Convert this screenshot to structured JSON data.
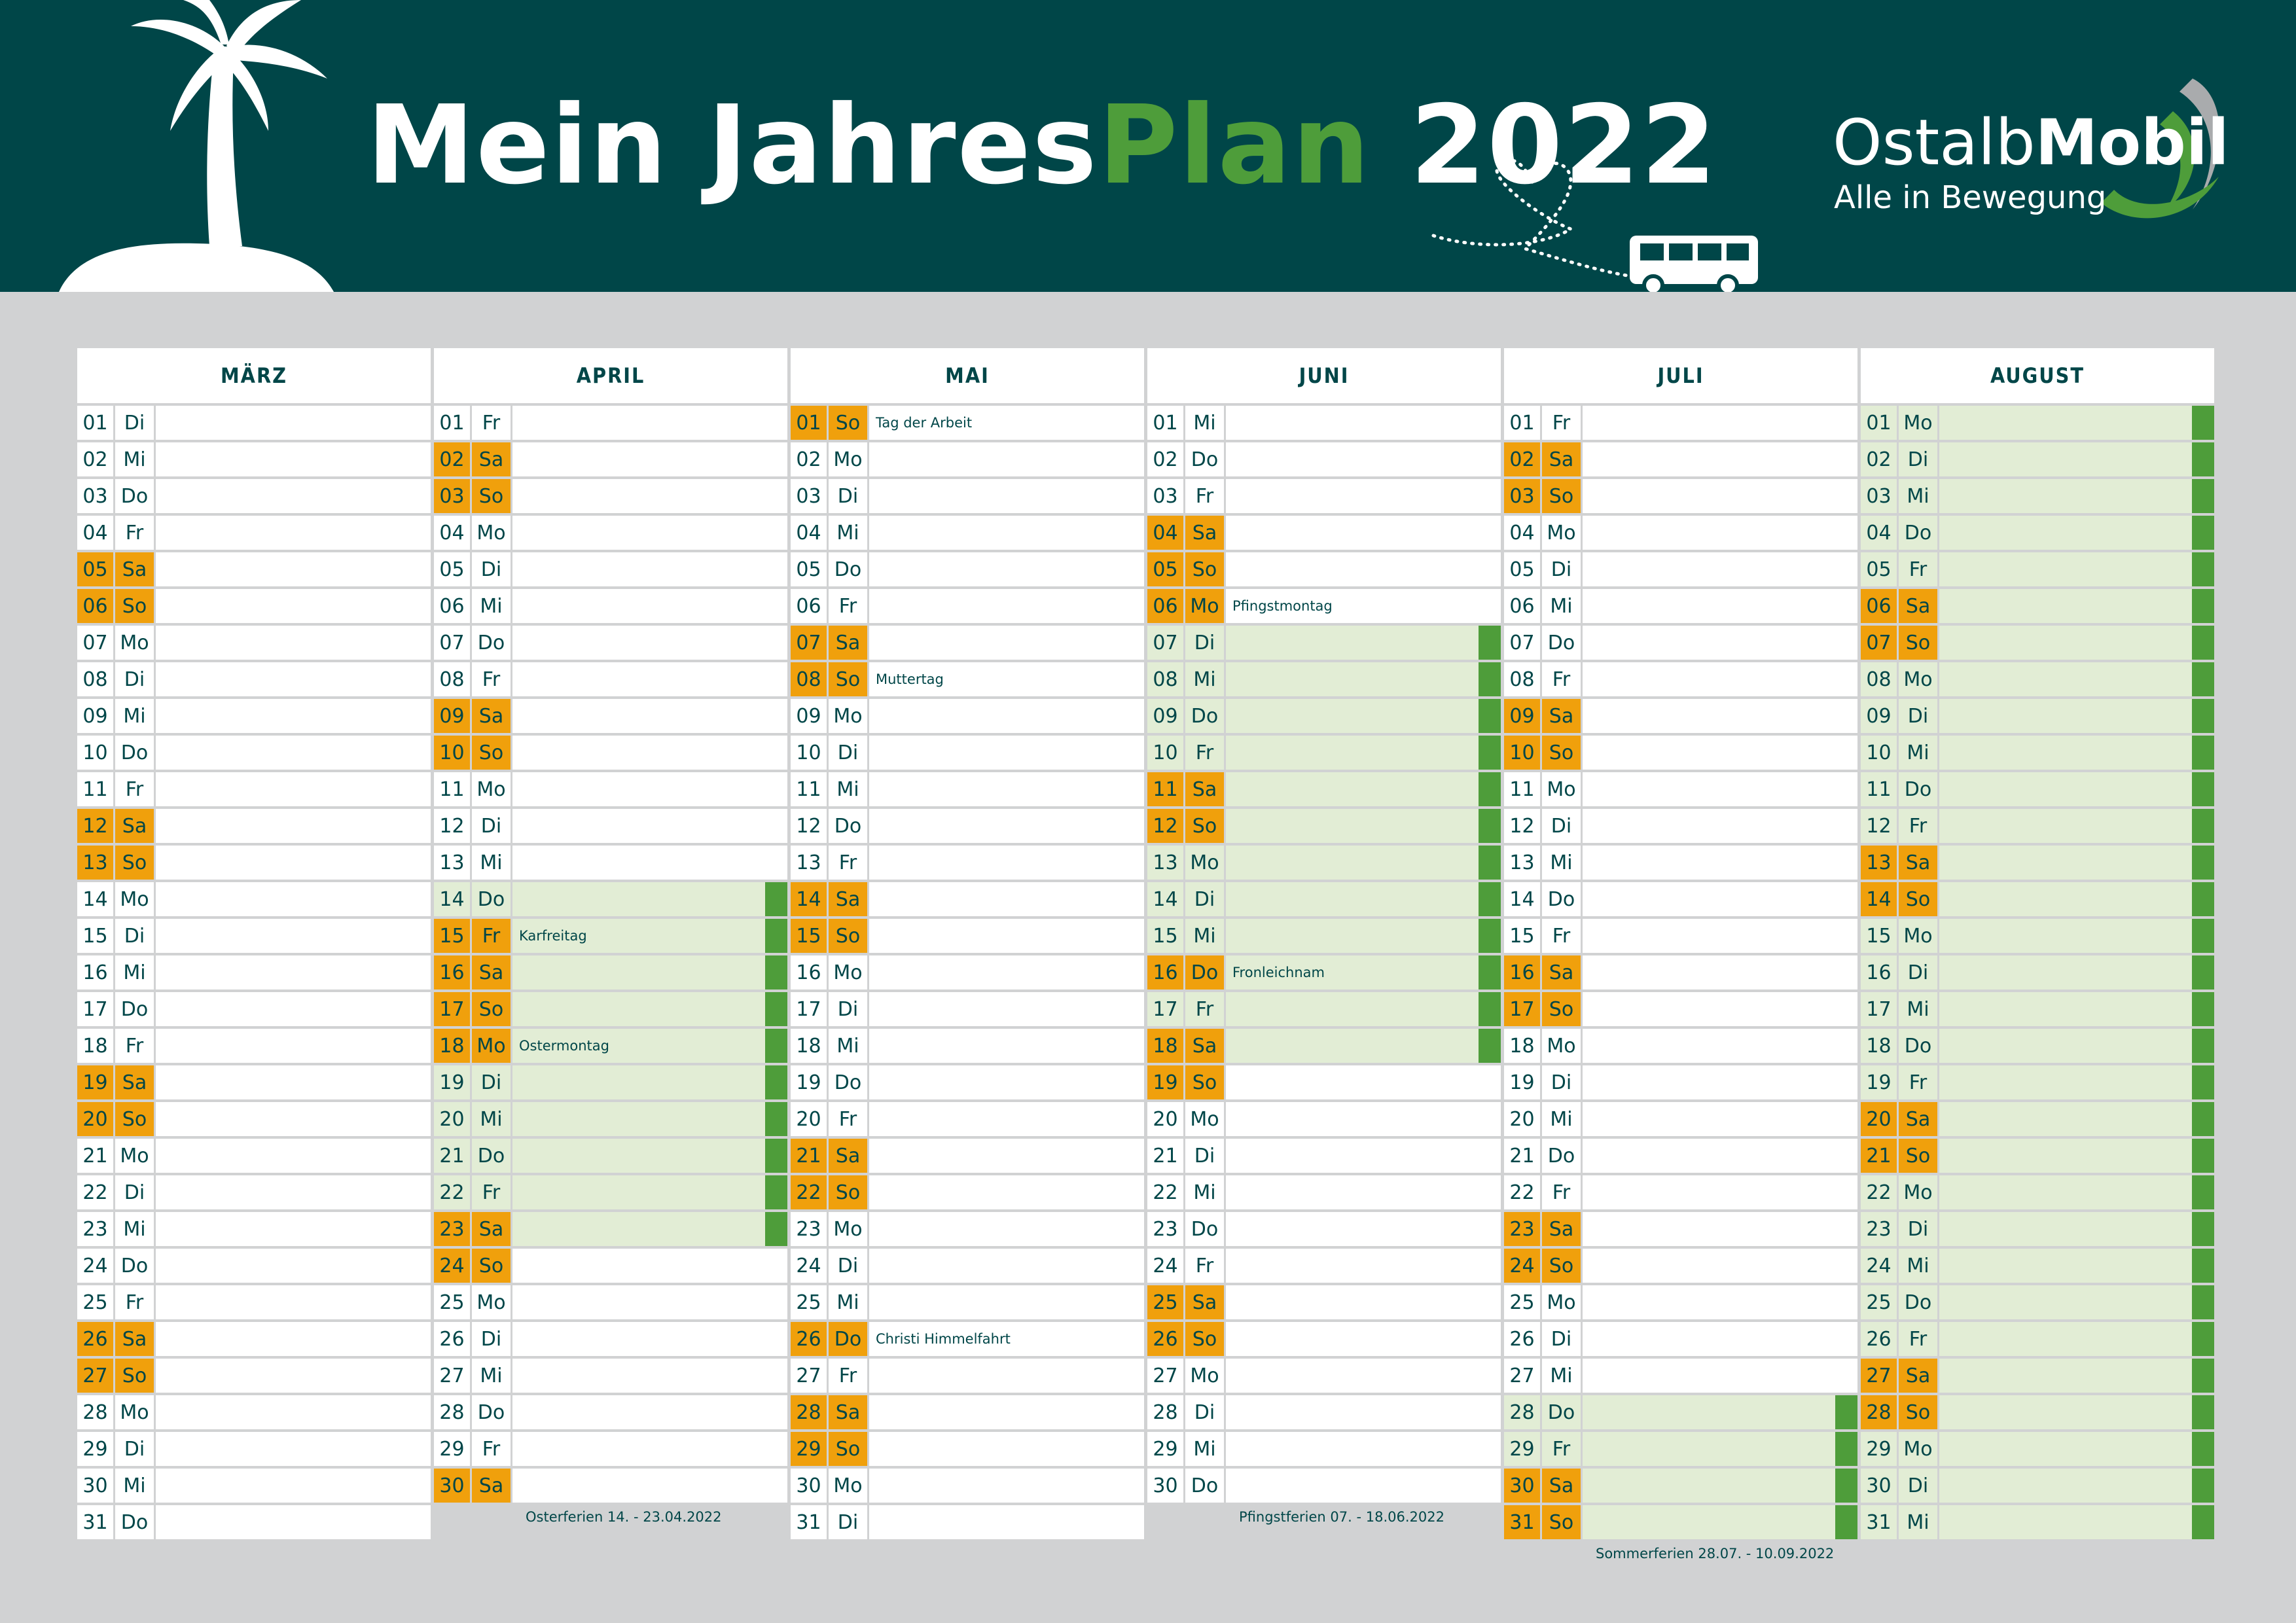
{
  "header": {
    "title_part1": "Mein Jahres",
    "title_part2": "Plan",
    "title_part3": " 2022",
    "brand_regular": "Ostalb",
    "brand_bold": "Mobil",
    "tagline": "Alle in Bewegung"
  },
  "colors": {
    "header_bg": "#004648",
    "weekend": "#f0a00c",
    "holiday_bg": "#e2edd5",
    "holiday_bar": "#4e9d3a",
    "accent_green": "#4e9d3a"
  },
  "months": [
    {
      "name": "MÄRZ",
      "first_weekday": 1,
      "days": 31,
      "notes": {},
      "vacation_days": [],
      "vacation_label": ""
    },
    {
      "name": "APRIL",
      "first_weekday": 4,
      "days": 30,
      "notes": {
        "15": "Karfreitag",
        "18": "Ostermontag"
      },
      "vacation_days": [
        14,
        15,
        16,
        17,
        18,
        19,
        20,
        21,
        22,
        23
      ],
      "vacation_label": "Osterferien 14. - 23.04.2022"
    },
    {
      "name": "MAI",
      "first_weekday": 6,
      "days": 31,
      "notes": {
        "1": "Tag der Arbeit",
        "8": "Muttertag",
        "26": "Christi Himmelfahrt"
      },
      "vacation_days": [],
      "vacation_label": ""
    },
    {
      "name": "JUNI",
      "first_weekday": 2,
      "days": 30,
      "notes": {
        "6": "Pfingstmontag",
        "16": "Fronleichnam"
      },
      "vacation_days": [
        7,
        8,
        9,
        10,
        11,
        12,
        13,
        14,
        15,
        16,
        17,
        18
      ],
      "vacation_label": "Pfingstferien 07. - 18.06.2022"
    },
    {
      "name": "JULI",
      "first_weekday": 4,
      "days": 31,
      "notes": {},
      "vacation_days": [
        28,
        29,
        30,
        31
      ],
      "vacation_label": "Sommerferien 28.07. - 10.09.2022"
    },
    {
      "name": "AUGUST",
      "first_weekday": 0,
      "days": 31,
      "notes": {},
      "vacation_days": [
        1,
        2,
        3,
        4,
        5,
        6,
        7,
        8,
        9,
        10,
        11,
        12,
        13,
        14,
        15,
        16,
        17,
        18,
        19,
        20,
        21,
        22,
        23,
        24,
        25,
        26,
        27,
        28,
        29,
        30,
        31
      ],
      "vacation_label": ""
    }
  ],
  "weekday_abbr": [
    "Mo",
    "Di",
    "Mi",
    "Do",
    "Fr",
    "Sa",
    "So"
  ],
  "holiday_days_weekend": {
    "APRIL": [
      15,
      18
    ],
    "MAI": [
      26
    ],
    "JUNI": [
      6,
      16
    ]
  },
  "icons": {
    "palm": "palm-island-icon",
    "bus": "bus-icon",
    "heart": "dotted-heart-path-icon",
    "logo_swoosh": "logo-swoosh-icon"
  }
}
